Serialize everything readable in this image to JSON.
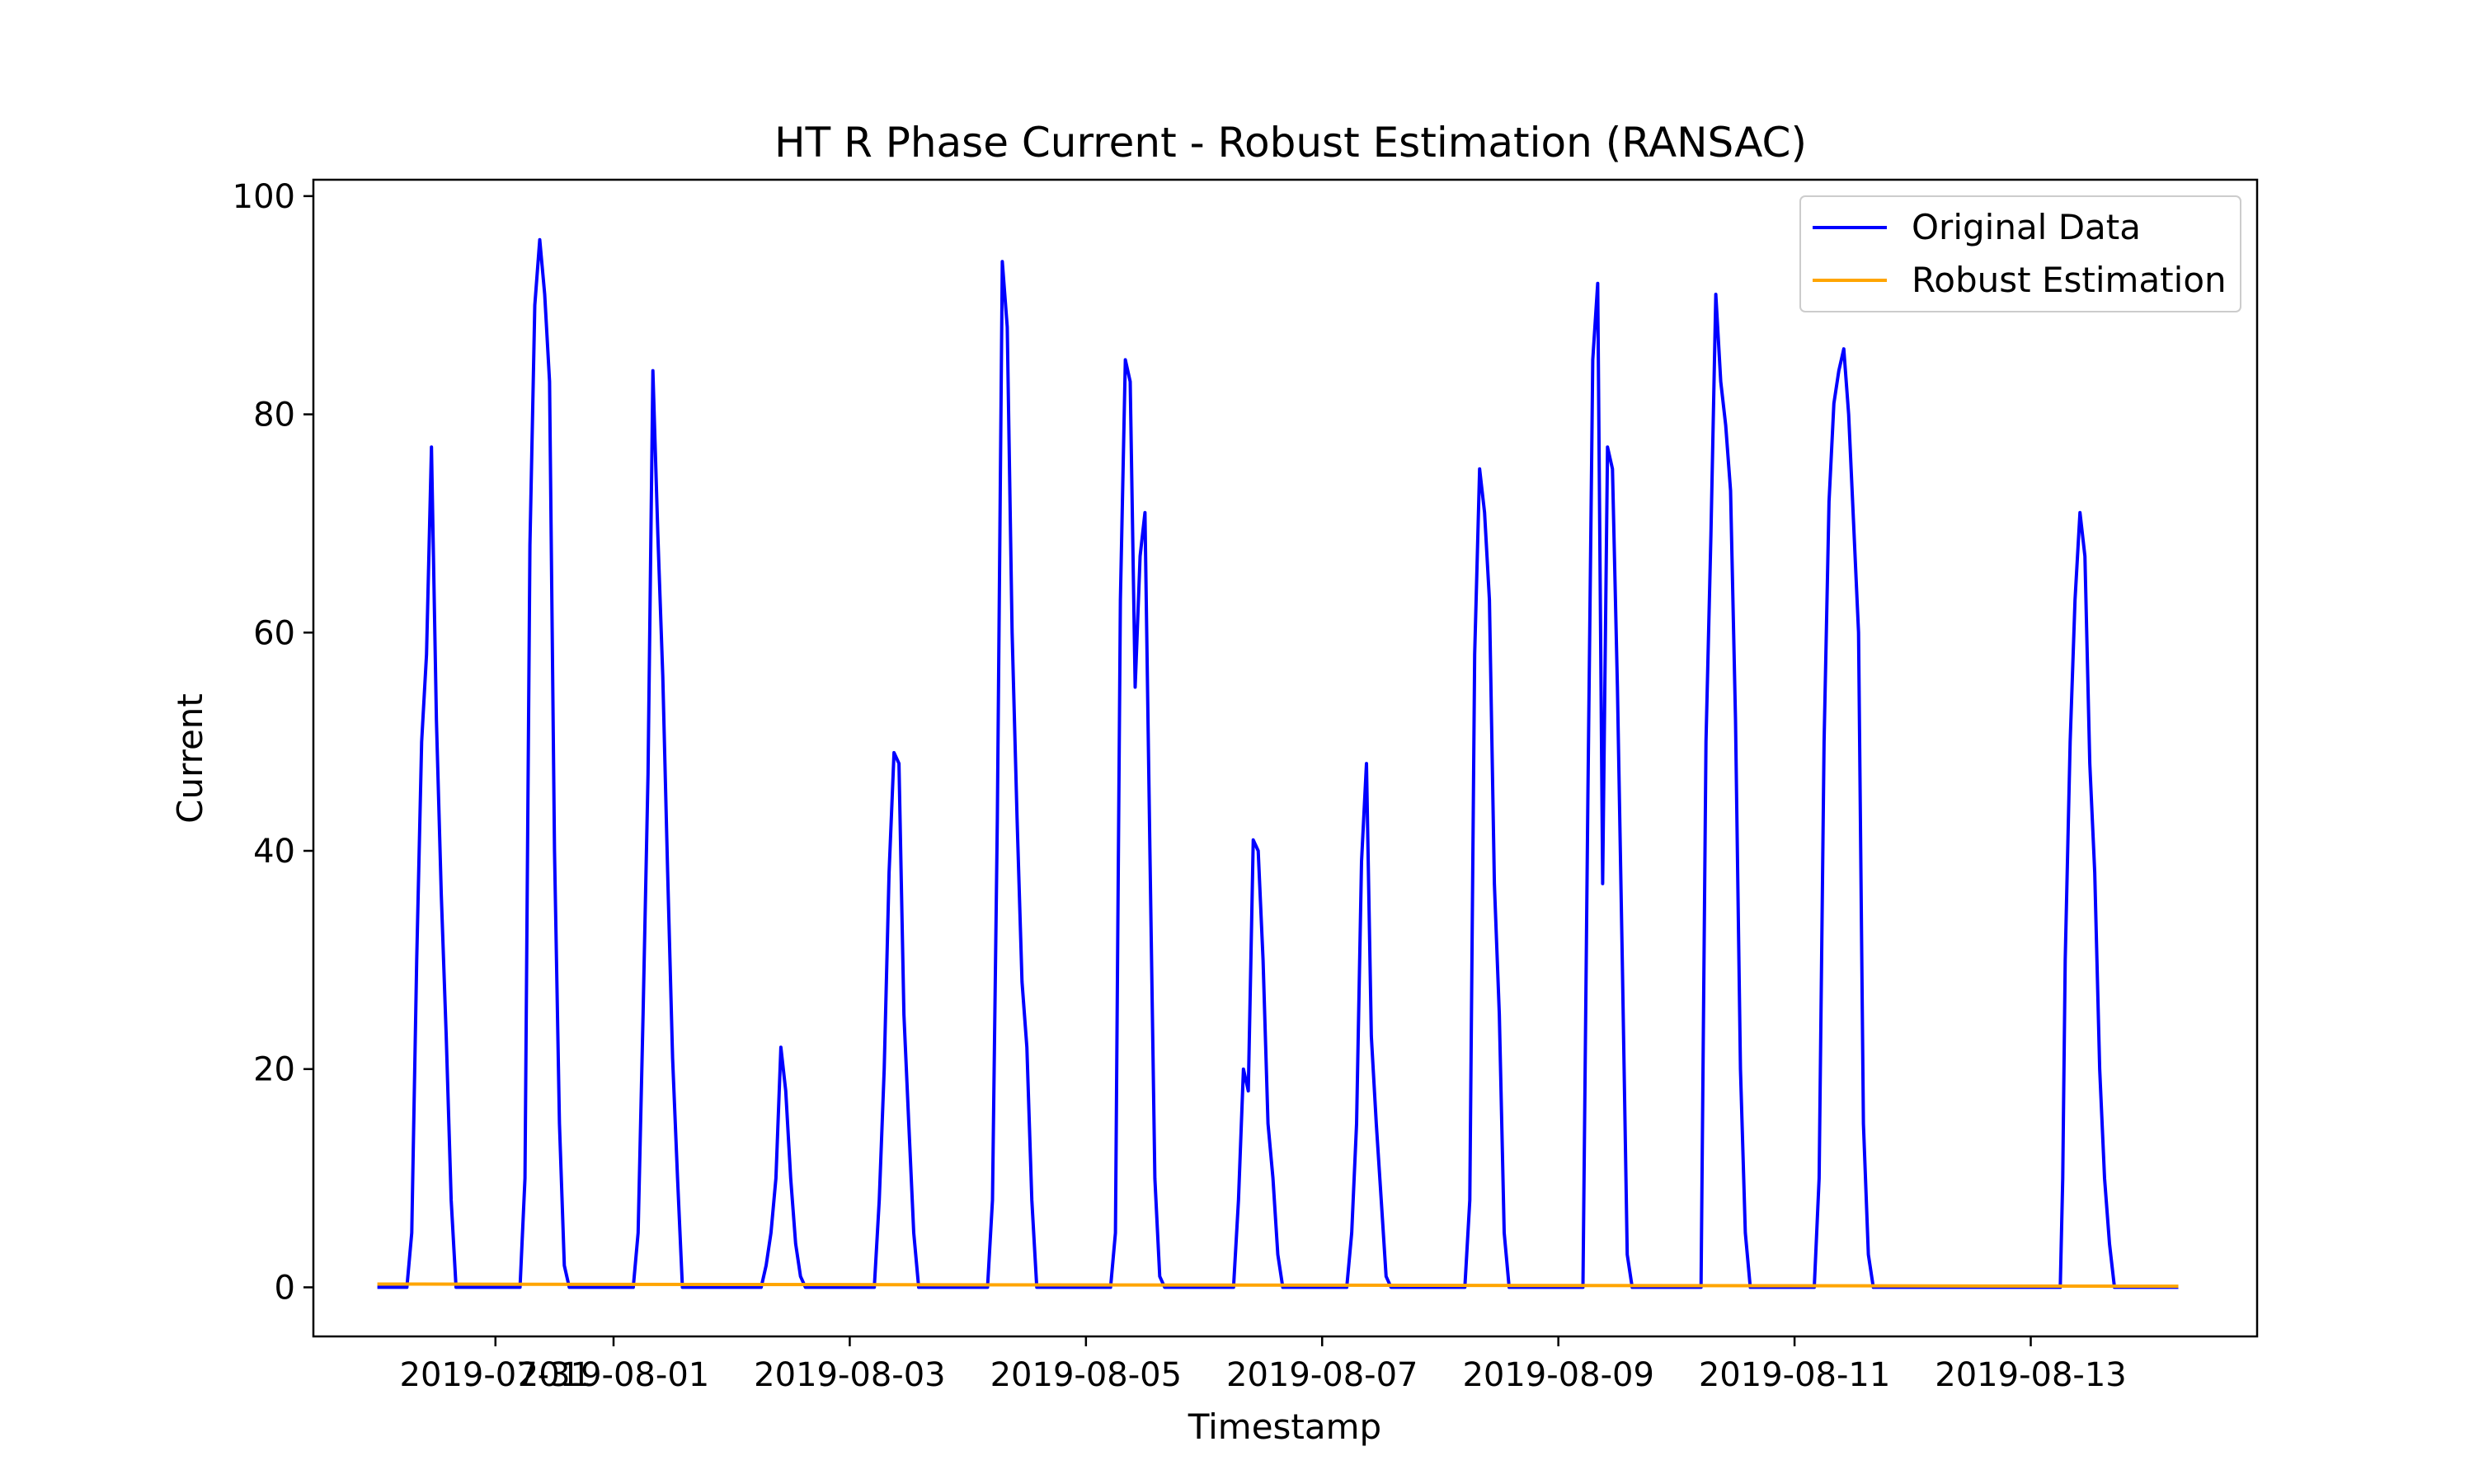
{
  "chart_data": {
    "type": "line",
    "title": "HT R Phase Current - Robust Estimation (RANSAC)",
    "xlabel": "Timestamp",
    "ylabel": "Current",
    "x_range": [
      "2019-07-29T11:00",
      "2019-08-14T22:00"
    ],
    "ylim": [
      -4.5,
      101.5
    ],
    "yticks": [
      0,
      20,
      40,
      60,
      80,
      100
    ],
    "xticks": [
      {
        "date": "2019-07-31",
        "label": "2019-07-31"
      },
      {
        "date": "2019-08-01",
        "label": "2019-08-01"
      },
      {
        "date": "2019-08-03",
        "label": "2019-08-03"
      },
      {
        "date": "2019-08-05",
        "label": "2019-08-05"
      },
      {
        "date": "2019-08-07",
        "label": "2019-08-07"
      },
      {
        "date": "2019-08-09",
        "label": "2019-08-09"
      },
      {
        "date": "2019-08-11",
        "label": "2019-08-11"
      },
      {
        "date": "2019-08-13",
        "label": "2019-08-13"
      }
    ],
    "grid": false,
    "legend_position": "top-right",
    "series": [
      {
        "name": "Original Data",
        "color": "#0000ff",
        "points": [
          [
            "2019-07-30T00:00",
            0
          ],
          [
            "2019-07-30T06:00",
            0
          ],
          [
            "2019-07-30T07:00",
            5
          ],
          [
            "2019-07-30T08:00",
            30
          ],
          [
            "2019-07-30T09:00",
            50
          ],
          [
            "2019-07-30T10:00",
            58
          ],
          [
            "2019-07-30T11:00",
            77
          ],
          [
            "2019-07-30T12:00",
            52
          ],
          [
            "2019-07-30T13:00",
            36
          ],
          [
            "2019-07-30T14:00",
            23
          ],
          [
            "2019-07-30T15:00",
            8
          ],
          [
            "2019-07-30T16:00",
            0
          ],
          [
            "2019-07-31T05:00",
            0
          ],
          [
            "2019-07-31T06:00",
            10
          ],
          [
            "2019-07-31T07:00",
            68
          ],
          [
            "2019-07-31T08:00",
            90
          ],
          [
            "2019-07-31T09:00",
            96
          ],
          [
            "2019-07-31T10:00",
            91
          ],
          [
            "2019-07-31T11:00",
            83
          ],
          [
            "2019-07-31T12:00",
            40
          ],
          [
            "2019-07-31T13:00",
            15
          ],
          [
            "2019-07-31T14:00",
            2
          ],
          [
            "2019-07-31T15:00",
            0
          ],
          [
            "2019-08-01T04:00",
            0
          ],
          [
            "2019-08-01T05:00",
            5
          ],
          [
            "2019-08-01T06:00",
            25
          ],
          [
            "2019-08-01T07:00",
            47
          ],
          [
            "2019-08-01T08:00",
            84
          ],
          [
            "2019-08-01T09:00",
            69
          ],
          [
            "2019-08-01T10:00",
            56
          ],
          [
            "2019-08-01T11:00",
            38
          ],
          [
            "2019-08-01T12:00",
            21
          ],
          [
            "2019-08-01T13:00",
            10
          ],
          [
            "2019-08-01T14:00",
            0
          ],
          [
            "2019-08-02T06:00",
            0
          ],
          [
            "2019-08-02T07:00",
            2
          ],
          [
            "2019-08-02T08:00",
            5
          ],
          [
            "2019-08-02T09:00",
            10
          ],
          [
            "2019-08-02T10:00",
            22
          ],
          [
            "2019-08-02T11:00",
            18
          ],
          [
            "2019-08-02T12:00",
            10
          ],
          [
            "2019-08-02T13:00",
            4
          ],
          [
            "2019-08-02T14:00",
            1
          ],
          [
            "2019-08-02T15:00",
            0
          ],
          [
            "2019-08-03T05:00",
            0
          ],
          [
            "2019-08-03T06:00",
            8
          ],
          [
            "2019-08-03T07:00",
            20
          ],
          [
            "2019-08-03T08:00",
            38
          ],
          [
            "2019-08-03T09:00",
            49
          ],
          [
            "2019-08-03T10:00",
            48
          ],
          [
            "2019-08-03T11:00",
            25
          ],
          [
            "2019-08-03T12:00",
            15
          ],
          [
            "2019-08-03T13:00",
            5
          ],
          [
            "2019-08-03T14:00",
            0
          ],
          [
            "2019-08-04T04:00",
            0
          ],
          [
            "2019-08-04T05:00",
            8
          ],
          [
            "2019-08-04T06:00",
            43
          ],
          [
            "2019-08-04T07:00",
            94
          ],
          [
            "2019-08-04T08:00",
            88
          ],
          [
            "2019-08-04T09:00",
            60
          ],
          [
            "2019-08-04T10:00",
            43
          ],
          [
            "2019-08-04T11:00",
            28
          ],
          [
            "2019-08-04T12:00",
            22
          ],
          [
            "2019-08-04T13:00",
            8
          ],
          [
            "2019-08-04T14:00",
            0
          ],
          [
            "2019-08-05T05:00",
            0
          ],
          [
            "2019-08-05T06:00",
            5
          ],
          [
            "2019-08-05T07:00",
            63
          ],
          [
            "2019-08-05T08:00",
            85
          ],
          [
            "2019-08-05T09:00",
            83
          ],
          [
            "2019-08-05T10:00",
            55
          ],
          [
            "2019-08-05T11:00",
            67
          ],
          [
            "2019-08-05T12:00",
            71
          ],
          [
            "2019-08-05T13:00",
            40
          ],
          [
            "2019-08-05T14:00",
            10
          ],
          [
            "2019-08-05T15:00",
            1
          ],
          [
            "2019-08-05T16:00",
            0
          ],
          [
            "2019-08-06T06:00",
            0
          ],
          [
            "2019-08-06T07:00",
            8
          ],
          [
            "2019-08-06T08:00",
            20
          ],
          [
            "2019-08-06T09:00",
            18
          ],
          [
            "2019-08-06T10:00",
            41
          ],
          [
            "2019-08-06T11:00",
            40
          ],
          [
            "2019-08-06T12:00",
            30
          ],
          [
            "2019-08-06T13:00",
            15
          ],
          [
            "2019-08-06T14:00",
            10
          ],
          [
            "2019-08-06T15:00",
            3
          ],
          [
            "2019-08-06T16:00",
            0
          ],
          [
            "2019-08-07T05:00",
            0
          ],
          [
            "2019-08-07T06:00",
            5
          ],
          [
            "2019-08-07T07:00",
            15
          ],
          [
            "2019-08-07T08:00",
            39
          ],
          [
            "2019-08-07T09:00",
            48
          ],
          [
            "2019-08-07T10:00",
            23
          ],
          [
            "2019-08-07T11:00",
            15
          ],
          [
            "2019-08-07T12:00",
            8
          ],
          [
            "2019-08-07T13:00",
            1
          ],
          [
            "2019-08-07T14:00",
            0
          ],
          [
            "2019-08-08T05:00",
            0
          ],
          [
            "2019-08-08T06:00",
            8
          ],
          [
            "2019-08-08T07:00",
            58
          ],
          [
            "2019-08-08T08:00",
            75
          ],
          [
            "2019-08-08T09:00",
            71
          ],
          [
            "2019-08-08T10:00",
            63
          ],
          [
            "2019-08-08T11:00",
            37
          ],
          [
            "2019-08-08T12:00",
            25
          ],
          [
            "2019-08-08T13:00",
            5
          ],
          [
            "2019-08-08T14:00",
            0
          ],
          [
            "2019-08-09T05:00",
            0
          ],
          [
            "2019-08-09T06:00",
            45
          ],
          [
            "2019-08-09T07:00",
            85
          ],
          [
            "2019-08-09T08:00",
            92
          ],
          [
            "2019-08-09T09:00",
            37
          ],
          [
            "2019-08-09T10:00",
            77
          ],
          [
            "2019-08-09T11:00",
            75
          ],
          [
            "2019-08-09T12:00",
            55
          ],
          [
            "2019-08-09T13:00",
            30
          ],
          [
            "2019-08-09T14:00",
            3
          ],
          [
            "2019-08-09T15:00",
            0
          ],
          [
            "2019-08-10T05:00",
            0
          ],
          [
            "2019-08-10T06:00",
            50
          ],
          [
            "2019-08-10T07:00",
            69
          ],
          [
            "2019-08-10T08:00",
            91
          ],
          [
            "2019-08-10T09:00",
            83
          ],
          [
            "2019-08-10T10:00",
            79
          ],
          [
            "2019-08-10T11:00",
            73
          ],
          [
            "2019-08-10T12:00",
            52
          ],
          [
            "2019-08-10T13:00",
            20
          ],
          [
            "2019-08-10T14:00",
            5
          ],
          [
            "2019-08-10T15:00",
            0
          ],
          [
            "2019-08-11T04:00",
            0
          ],
          [
            "2019-08-11T05:00",
            10
          ],
          [
            "2019-08-11T06:00",
            50
          ],
          [
            "2019-08-11T07:00",
            72
          ],
          [
            "2019-08-11T08:00",
            81
          ],
          [
            "2019-08-11T09:00",
            84
          ],
          [
            "2019-08-11T10:00",
            86
          ],
          [
            "2019-08-11T11:00",
            80
          ],
          [
            "2019-08-11T12:00",
            70
          ],
          [
            "2019-08-11T13:00",
            60
          ],
          [
            "2019-08-11T14:00",
            15
          ],
          [
            "2019-08-11T15:00",
            3
          ],
          [
            "2019-08-11T16:00",
            0
          ],
          [
            "2019-08-13T06:00",
            0
          ],
          [
            "2019-08-13T06:30",
            10
          ],
          [
            "2019-08-13T07:00",
            30
          ],
          [
            "2019-08-13T08:00",
            50
          ],
          [
            "2019-08-13T09:00",
            63
          ],
          [
            "2019-08-13T10:00",
            71
          ],
          [
            "2019-08-13T11:00",
            67
          ],
          [
            "2019-08-13T12:00",
            48
          ],
          [
            "2019-08-13T13:00",
            38
          ],
          [
            "2019-08-13T14:00",
            20
          ],
          [
            "2019-08-13T15:00",
            10
          ],
          [
            "2019-08-13T16:00",
            4
          ],
          [
            "2019-08-13T17:00",
            0
          ],
          [
            "2019-08-14T06:00",
            0
          ]
        ]
      },
      {
        "name": "Robust Estimation",
        "color": "#ffa500",
        "points": [
          [
            "2019-07-30T00:00",
            0.3
          ],
          [
            "2019-08-14T06:00",
            0.1
          ]
        ]
      }
    ]
  }
}
